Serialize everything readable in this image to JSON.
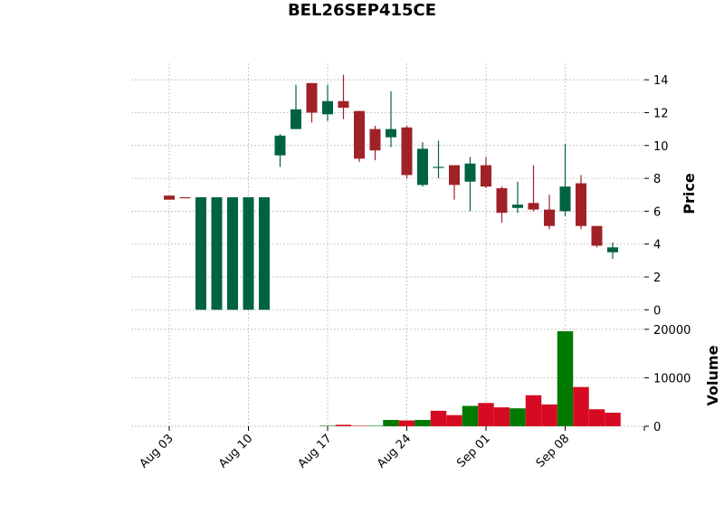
{
  "chart_data": {
    "type": "candlestick",
    "title": "BEL26SEP415CE",
    "categories": [
      "Aug 03",
      null,
      null,
      null,
      null,
      "Aug 10",
      null,
      null,
      null,
      null,
      "Aug 17",
      null,
      null,
      null,
      null,
      "Aug 24",
      null,
      null,
      null,
      null,
      "Sep 01",
      null,
      null,
      null,
      null,
      "Sep 08",
      null,
      null,
      null
    ],
    "open": [
      6.95,
      6.85,
      0,
      0,
      0,
      0,
      0,
      9.4,
      11.0,
      13.8,
      11.9,
      12.7,
      12.1,
      11.0,
      10.5,
      11.1,
      7.6,
      8.65,
      8.8,
      7.8,
      8.8,
      7.4,
      6.2,
      6.5,
      6.1,
      6.0,
      7.7,
      5.1,
      3.5
    ],
    "high": [
      6.95,
      6.85,
      6.85,
      6.85,
      6.85,
      6.85,
      6.85,
      10.7,
      13.7,
      13.8,
      13.7,
      14.3,
      12.1,
      11.2,
      13.3,
      11.2,
      10.2,
      10.3,
      8.8,
      9.3,
      9.3,
      7.5,
      7.8,
      8.8,
      7.0,
      10.1,
      8.2,
      5.1,
      4.1
    ],
    "low": [
      6.7,
      6.8,
      0,
      0,
      0,
      0,
      0,
      8.7,
      11.0,
      11.4,
      11.5,
      11.6,
      9.0,
      9.1,
      9.9,
      8.0,
      7.5,
      8.0,
      6.7,
      6.0,
      7.4,
      5.3,
      5.9,
      6.0,
      4.9,
      5.7,
      4.9,
      3.8,
      3.1
    ],
    "close": [
      6.7,
      6.8,
      6.85,
      6.85,
      6.85,
      6.85,
      6.85,
      10.6,
      12.2,
      12.0,
      12.7,
      12.3,
      9.2,
      9.7,
      11.0,
      8.2,
      9.8,
      8.7,
      7.6,
      8.9,
      7.5,
      5.9,
      6.4,
      6.1,
      5.1,
      7.5,
      5.1,
      3.9,
      3.8
    ],
    "volume": [
      0,
      0,
      0,
      0,
      0,
      0,
      0,
      0,
      0,
      0,
      100,
      300,
      100,
      100,
      1300,
      1200,
      1300,
      3200,
      2300,
      4200,
      4800,
      3900,
      3700,
      6400,
      4500,
      19600,
      8100,
      3500,
      2800
    ],
    "up_color": "#006340",
    "down_color": "#a02128",
    "volume_up_color": "#007a00",
    "volume_down_color": "#d60a22",
    "ylabel": "Price",
    "ylim": [
      -0.7,
      15
    ],
    "yticks": [
      0,
      2,
      4,
      6,
      8,
      10,
      12,
      14
    ],
    "volume_label": "Volume",
    "volume_ylim": [
      0,
      21100
    ],
    "volume_yticks": [
      0,
      10000,
      20000
    ],
    "grid": true
  }
}
